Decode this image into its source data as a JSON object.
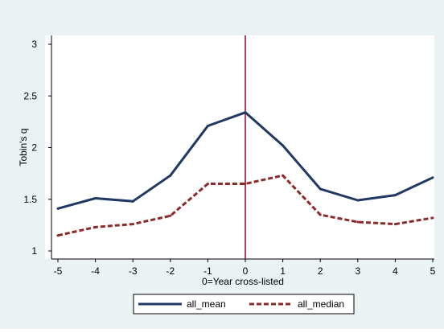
{
  "chart_data": {
    "type": "line",
    "title": "",
    "xlabel": "0=Year cross-listed",
    "ylabel": "Tobin's q",
    "x": [
      -5,
      -4,
      -3,
      -2,
      -1,
      0,
      1,
      2,
      3,
      4,
      5
    ],
    "xticks": [
      "-5",
      "-4",
      "-3",
      "-2",
      "-1",
      "0",
      "1",
      "2",
      "3",
      "4",
      "5"
    ],
    "yticks": [
      "1",
      "1.5",
      "2",
      "2.5",
      "3"
    ],
    "xlim": [
      -5,
      5
    ],
    "ylim": [
      1,
      3
    ],
    "series": [
      {
        "name": "all_mean",
        "values": [
          1.41,
          1.51,
          1.48,
          1.73,
          2.21,
          2.34,
          2.02,
          1.6,
          1.49,
          1.54,
          1.71
        ]
      },
      {
        "name": "all_median",
        "values": [
          1.15,
          1.23,
          1.26,
          1.34,
          1.65,
          1.65,
          1.73,
          1.35,
          1.28,
          1.26,
          1.32
        ]
      }
    ],
    "reference_line_x": 0,
    "grid": false,
    "legend_position": "bottom",
    "colors": {
      "all_mean": "#1f3864",
      "all_median": "#8c2a2a",
      "reference_line": "#990033",
      "background": "#eaf2f3",
      "plot_background": "#ffffff"
    }
  }
}
